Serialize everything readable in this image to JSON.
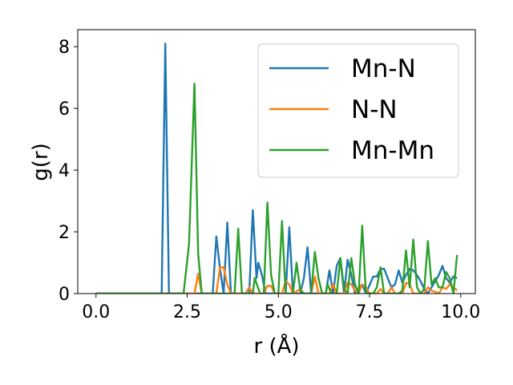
{
  "chart_data": {
    "type": "line",
    "xlabel": "r (Å)",
    "ylabel": "g(r)",
    "xlim": [
      -0.5,
      10.4
    ],
    "ylim": [
      0,
      8.55
    ],
    "xticks": [
      0.0,
      2.5,
      5.0,
      7.5,
      10.0
    ],
    "xtick_labels": [
      "0.0",
      "2.5",
      "5.0",
      "7.5",
      "10.0"
    ],
    "yticks": [
      0,
      2,
      4,
      6,
      8
    ],
    "ytick_labels": [
      "0",
      "2",
      "4",
      "6",
      "8"
    ],
    "grid": false,
    "legend_position": "upper right",
    "series": [
      {
        "name": "Mn-N",
        "color": "#1f77b4",
        "points": [
          [
            0.0,
            0
          ],
          [
            1.8,
            0
          ],
          [
            1.9,
            8.1
          ],
          [
            2.0,
            0
          ],
          [
            3.2,
            0
          ],
          [
            3.3,
            1.85
          ],
          [
            3.4,
            0.8
          ],
          [
            3.5,
            0
          ],
          [
            3.6,
            2.3
          ],
          [
            3.7,
            0
          ],
          [
            4.2,
            0
          ],
          [
            4.3,
            2.7
          ],
          [
            4.4,
            0.5
          ],
          [
            4.45,
            1.0
          ],
          [
            4.55,
            0.6
          ],
          [
            4.65,
            0
          ],
          [
            5.2,
            0
          ],
          [
            5.3,
            2.15
          ],
          [
            5.4,
            0
          ],
          [
            5.6,
            0
          ],
          [
            5.7,
            0.5
          ],
          [
            5.8,
            1.5
          ],
          [
            5.9,
            0
          ],
          [
            6.3,
            0
          ],
          [
            6.4,
            0.75
          ],
          [
            6.5,
            0
          ],
          [
            6.6,
            0.9
          ],
          [
            6.7,
            1.15
          ],
          [
            6.8,
            0
          ],
          [
            6.9,
            1.1
          ],
          [
            7.0,
            0.6
          ],
          [
            7.1,
            0
          ],
          [
            7.3,
            0.3
          ],
          [
            7.4,
            0
          ],
          [
            7.6,
            0.55
          ],
          [
            7.7,
            0.55
          ],
          [
            7.8,
            0.8
          ],
          [
            7.9,
            0.8
          ],
          [
            8.0,
            0.5
          ],
          [
            8.1,
            0.2
          ],
          [
            8.2,
            0.3
          ],
          [
            8.3,
            0.75
          ],
          [
            8.4,
            0.35
          ],
          [
            8.5,
            0.6
          ],
          [
            8.6,
            0.8
          ],
          [
            8.7,
            0.75
          ],
          [
            8.8,
            0.6
          ],
          [
            8.9,
            0.4
          ],
          [
            9.0,
            0.15
          ],
          [
            9.1,
            0
          ],
          [
            9.3,
            0.4
          ],
          [
            9.4,
            0.6
          ],
          [
            9.5,
            0.9
          ],
          [
            9.6,
            0.5
          ],
          [
            9.7,
            0.35
          ],
          [
            9.8,
            0.55
          ],
          [
            9.9,
            0.5
          ]
        ]
      },
      {
        "name": "N-N",
        "color": "#ff7f0e",
        "points": [
          [
            0.0,
            0
          ],
          [
            2.7,
            0
          ],
          [
            2.8,
            0.65
          ],
          [
            2.9,
            0
          ],
          [
            3.3,
            0
          ],
          [
            3.4,
            0.85
          ],
          [
            3.5,
            0.85
          ],
          [
            3.6,
            0.3
          ],
          [
            3.7,
            0
          ],
          [
            4.1,
            0
          ],
          [
            4.2,
            0.2
          ],
          [
            4.3,
            0
          ],
          [
            4.6,
            0
          ],
          [
            4.7,
            0.25
          ],
          [
            4.8,
            0.25
          ],
          [
            4.9,
            0
          ],
          [
            5.1,
            0
          ],
          [
            5.2,
            0.4
          ],
          [
            5.3,
            0.3
          ],
          [
            5.4,
            0
          ],
          [
            5.6,
            0.15
          ],
          [
            5.7,
            0
          ],
          [
            5.9,
            0
          ],
          [
            6.0,
            0.55
          ],
          [
            6.1,
            0
          ],
          [
            6.4,
            0
          ],
          [
            6.5,
            0.3
          ],
          [
            6.6,
            0
          ],
          [
            6.8,
            0
          ],
          [
            6.9,
            0.35
          ],
          [
            7.0,
            0.3
          ],
          [
            7.1,
            0.1
          ],
          [
            7.2,
            0
          ],
          [
            7.3,
            0.3
          ],
          [
            7.4,
            0.2
          ],
          [
            7.5,
            0
          ],
          [
            7.7,
            0
          ],
          [
            7.8,
            0.15
          ],
          [
            7.9,
            0
          ],
          [
            8.0,
            0
          ],
          [
            8.1,
            0.2
          ],
          [
            8.2,
            0
          ],
          [
            8.4,
            0
          ],
          [
            8.5,
            0.35
          ],
          [
            8.6,
            0.3
          ],
          [
            8.7,
            0
          ],
          [
            9.0,
            0
          ],
          [
            9.1,
            0.2
          ],
          [
            9.2,
            0.1
          ],
          [
            9.4,
            0
          ],
          [
            9.5,
            0.2
          ],
          [
            9.6,
            0.15
          ],
          [
            9.7,
            0.3
          ],
          [
            9.8,
            0.2
          ],
          [
            9.9,
            0.1
          ]
        ]
      },
      {
        "name": "Mn-Mn",
        "color": "#2ca02c",
        "points": [
          [
            0.0,
            0
          ],
          [
            2.4,
            0
          ],
          [
            2.55,
            1.6
          ],
          [
            2.7,
            6.8
          ],
          [
            2.8,
            1.3
          ],
          [
            2.9,
            0
          ],
          [
            3.8,
            0
          ],
          [
            3.9,
            2.1
          ],
          [
            4.0,
            0
          ],
          [
            4.3,
            0
          ],
          [
            4.35,
            0.5
          ],
          [
            4.5,
            0
          ],
          [
            4.6,
            0
          ],
          [
            4.7,
            2.95
          ],
          [
            4.8,
            0.6
          ],
          [
            4.9,
            0
          ],
          [
            5.0,
            0
          ],
          [
            5.1,
            2.35
          ],
          [
            5.2,
            0
          ],
          [
            5.4,
            0
          ],
          [
            5.5,
            1.0
          ],
          [
            5.6,
            0.1
          ],
          [
            5.7,
            0
          ],
          [
            5.9,
            0
          ],
          [
            6.0,
            1.35
          ],
          [
            6.1,
            0.5
          ],
          [
            6.2,
            0
          ],
          [
            6.3,
            0
          ],
          [
            6.35,
            0.3
          ],
          [
            6.45,
            0
          ],
          [
            6.6,
            0
          ],
          [
            6.7,
            1.15
          ],
          [
            6.8,
            0.15
          ],
          [
            6.9,
            0
          ],
          [
            7.0,
            1.15
          ],
          [
            7.1,
            0.3
          ],
          [
            7.2,
            0
          ],
          [
            7.3,
            2.2
          ],
          [
            7.4,
            0
          ],
          [
            7.6,
            0
          ],
          [
            7.7,
            0.2
          ],
          [
            7.8,
            0.85
          ],
          [
            7.9,
            0
          ],
          [
            8.3,
            0
          ],
          [
            8.4,
            0.1
          ],
          [
            8.5,
            1.4
          ],
          [
            8.6,
            0.2
          ],
          [
            8.7,
            1.75
          ],
          [
            8.8,
            0.2
          ],
          [
            8.9,
            0
          ],
          [
            9.0,
            0.15
          ],
          [
            9.1,
            1.7
          ],
          [
            9.2,
            0.3
          ],
          [
            9.3,
            0.5
          ],
          [
            9.4,
            0.2
          ],
          [
            9.5,
            0.2
          ],
          [
            9.6,
            0.7
          ],
          [
            9.7,
            0.5
          ],
          [
            9.8,
            0
          ],
          [
            9.9,
            1.25
          ]
        ]
      }
    ]
  }
}
